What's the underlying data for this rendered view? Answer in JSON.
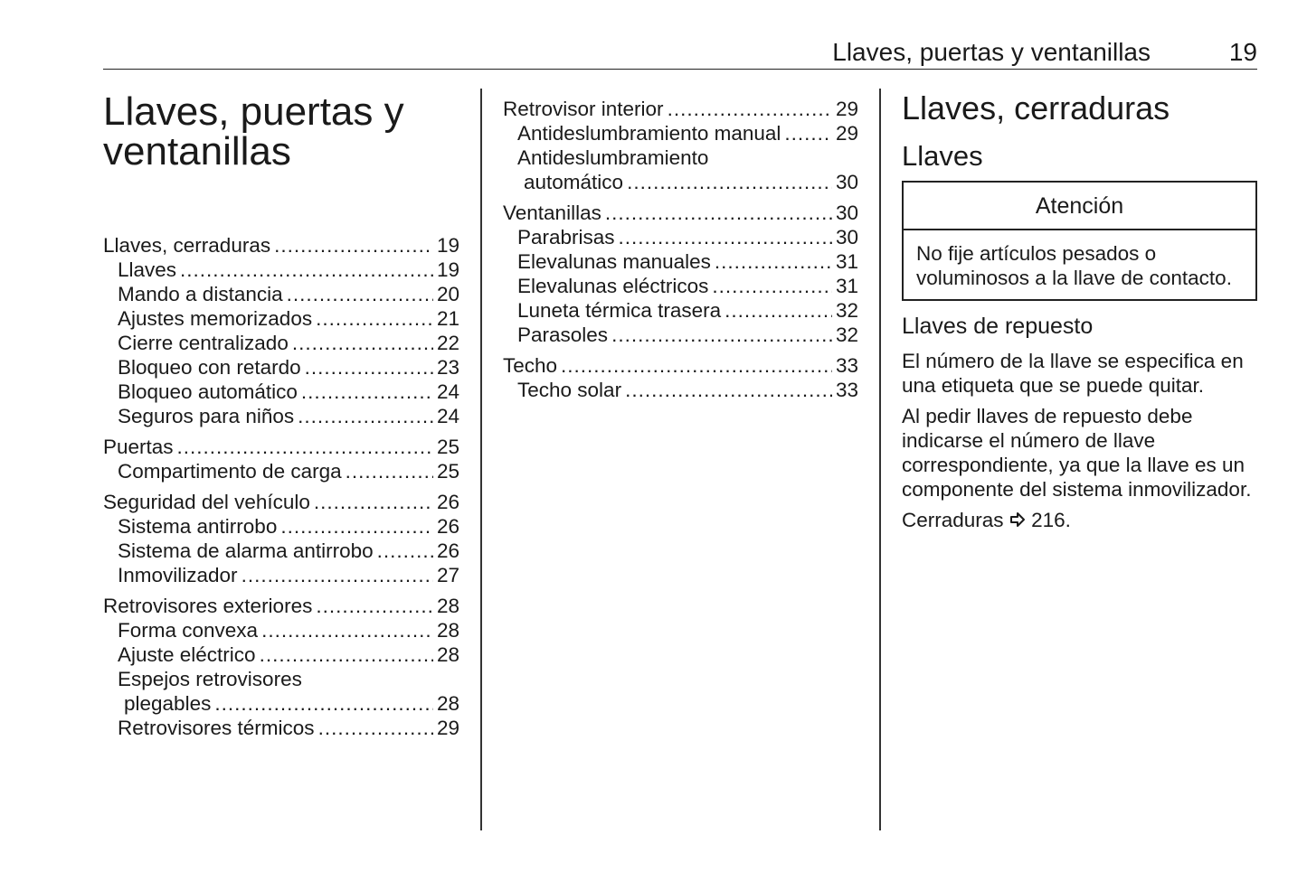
{
  "header": {
    "title": "Llaves, puertas y ventanillas",
    "page": "19"
  },
  "chapter_title": "Llaves, puertas y ventanillas",
  "toc_col1": [
    {
      "label": "Llaves, cerraduras",
      "page": "19",
      "items": [
        {
          "label": "Llaves",
          "page": "19"
        },
        {
          "label": "Mando a distancia",
          "page": "20"
        },
        {
          "label": "Ajustes memorizados",
          "page": "21"
        },
        {
          "label": "Cierre centralizado",
          "page": "22"
        },
        {
          "label": "Bloqueo con retardo",
          "page": "23"
        },
        {
          "label": "Bloqueo automático",
          "page": "24"
        },
        {
          "label": "Seguros para niños",
          "page": "24"
        }
      ]
    },
    {
      "label": "Puertas",
      "page": "25",
      "items": [
        {
          "label": "Compartimento de carga",
          "page": "25"
        }
      ]
    },
    {
      "label": "Seguridad del vehículo",
      "page": "26",
      "items": [
        {
          "label": "Sistema antirrobo",
          "page": "26"
        },
        {
          "label": "Sistema de alarma antirrobo",
          "page": "26"
        },
        {
          "label": "Inmovilizador",
          "page": "27"
        }
      ]
    },
    {
      "label": "Retrovisores exteriores",
      "page": "28",
      "items": [
        {
          "label": "Forma convexa",
          "page": "28"
        },
        {
          "label": "Ajuste eléctrico",
          "page": "28"
        },
        {
          "line1": "Espejos retrovisores",
          "label": "plegables",
          "page": "28"
        },
        {
          "label": "Retrovisores térmicos",
          "page": "29"
        }
      ]
    }
  ],
  "toc_col2": [
    {
      "label": "Retrovisor interior",
      "page": "29",
      "items": [
        {
          "label": "Antideslumbramiento manual",
          "page": "29"
        },
        {
          "line1": "Antideslumbramiento",
          "label": "automático",
          "page": "30"
        }
      ]
    },
    {
      "label": "Ventanillas",
      "page": "30",
      "items": [
        {
          "label": "Parabrisas",
          "page": "30"
        },
        {
          "label": "Elevalunas manuales",
          "page": "31"
        },
        {
          "label": "Elevalunas eléctricos",
          "page": "31"
        },
        {
          "label": "Luneta térmica trasera",
          "page": "32"
        },
        {
          "label": "Parasoles",
          "page": "32"
        }
      ]
    },
    {
      "label": "Techo",
      "page": "33",
      "items": [
        {
          "label": "Techo solar",
          "page": "33"
        }
      ]
    }
  ],
  "content": {
    "section_title": "Llaves, cerraduras",
    "subsection_title": "Llaves",
    "warning": {
      "title": "Atención",
      "text": "No fije artículos pesados o voluminosos a la llave de contacto."
    },
    "sub2_title": "Llaves de repuesto",
    "paragraphs": [
      "El número de la llave se especifica en una etiqueta que se puede quitar.",
      "Al pedir llaves de repuesto debe indicarse el número de llave correspondiente, ya que la llave es un componente del sistema inmovilizador."
    ],
    "reference": {
      "label": "Cerraduras",
      "icon": "arrow-right-outline-icon",
      "page": "216."
    }
  }
}
